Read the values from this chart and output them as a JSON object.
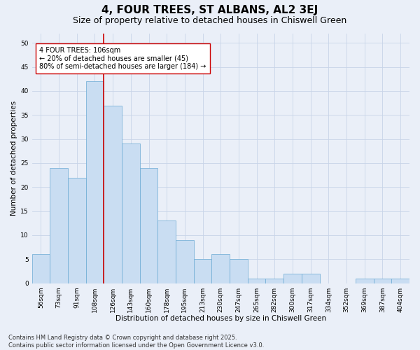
{
  "title1": "4, FOUR TREES, ST ALBANS, AL2 3EJ",
  "title2": "Size of property relative to detached houses in Chiswell Green",
  "xlabel": "Distribution of detached houses by size in Chiswell Green",
  "ylabel": "Number of detached properties",
  "categories": [
    "56sqm",
    "73sqm",
    "91sqm",
    "108sqm",
    "126sqm",
    "143sqm",
    "160sqm",
    "178sqm",
    "195sqm",
    "213sqm",
    "230sqm",
    "247sqm",
    "265sqm",
    "282sqm",
    "300sqm",
    "317sqm",
    "334sqm",
    "352sqm",
    "369sqm",
    "387sqm",
    "404sqm"
  ],
  "values": [
    6,
    24,
    22,
    42,
    37,
    29,
    24,
    13,
    9,
    5,
    6,
    5,
    1,
    1,
    2,
    2,
    0,
    0,
    1,
    1,
    1
  ],
  "bar_color": "#c9ddf2",
  "bar_edge_color": "#6aaad4",
  "bar_width": 1.0,
  "vline_x": 3.5,
  "vline_color": "#cc0000",
  "annotation_text": "4 FOUR TREES: 106sqm\n← 20% of detached houses are smaller (45)\n80% of semi-detached houses are larger (184) →",
  "annotation_box_color": "#ffffff",
  "annotation_box_edge": "#cc0000",
  "ylim": [
    0,
    52
  ],
  "yticks": [
    0,
    5,
    10,
    15,
    20,
    25,
    30,
    35,
    40,
    45,
    50
  ],
  "grid_color": "#c8d4e8",
  "background_color": "#eaeff8",
  "footer_text": "Contains HM Land Registry data © Crown copyright and database right 2025.\nContains public sector information licensed under the Open Government Licence v3.0.",
  "title_fontsize": 11,
  "subtitle_fontsize": 9,
  "axis_label_fontsize": 7.5,
  "tick_fontsize": 6.5,
  "annotation_fontsize": 7,
  "footer_fontsize": 6
}
